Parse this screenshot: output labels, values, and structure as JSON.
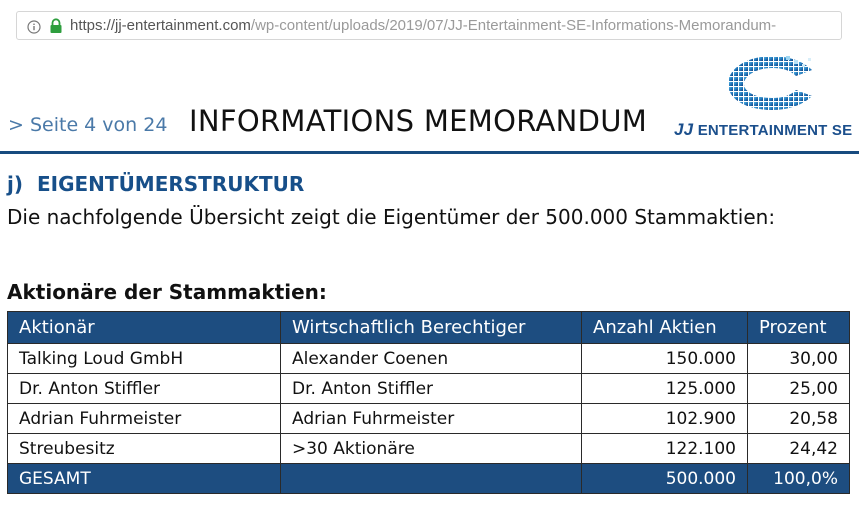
{
  "browser": {
    "url_host": "https://jj-entertainment.com",
    "url_path": "/wp-content/uploads/2019/07/JJ-Entertainment-SE-Informations-Memorandum-"
  },
  "header": {
    "page_indicator": "> Seite 4 von 24",
    "title": "INFORMATIONS MEMORANDUM",
    "logo_jj": "JJ",
    "logo_text": "ENTERTAINMENT SE"
  },
  "section": {
    "number": "j)",
    "heading": "EIGENTÜMERSTRUKTUR",
    "intro": "Die nachfolgende Übersicht zeigt die Eigentümer der 500.000 Stammaktien:",
    "table_caption": "Aktionäre der Stammaktien:"
  },
  "table": {
    "columns": [
      "Aktionär",
      "Wirtschaftlich Berechtiger",
      "Anzahl Aktien",
      "Prozent"
    ],
    "rows": [
      [
        "Talking Loud GmbH",
        "Alexander Coenen",
        "150.000",
        "30,00"
      ],
      [
        "Dr. Anton Stiffler",
        "Dr. Anton Stiffler",
        "125.000",
        "25,00"
      ],
      [
        "Adrian Fuhrmeister",
        "Adrian Fuhrmeister",
        "102.900",
        "20,58"
      ],
      [
        "Streubesitz",
        ">30 Aktionäre",
        "122.100",
        "24,42"
      ]
    ],
    "total": [
      "GESAMT",
      "",
      "500.000",
      "100,0%"
    ]
  },
  "colors": {
    "accent": "#174f89",
    "table_header": "#1d4d80",
    "page_indicator": "#4a79a8",
    "lock": "#2e9e3e"
  }
}
